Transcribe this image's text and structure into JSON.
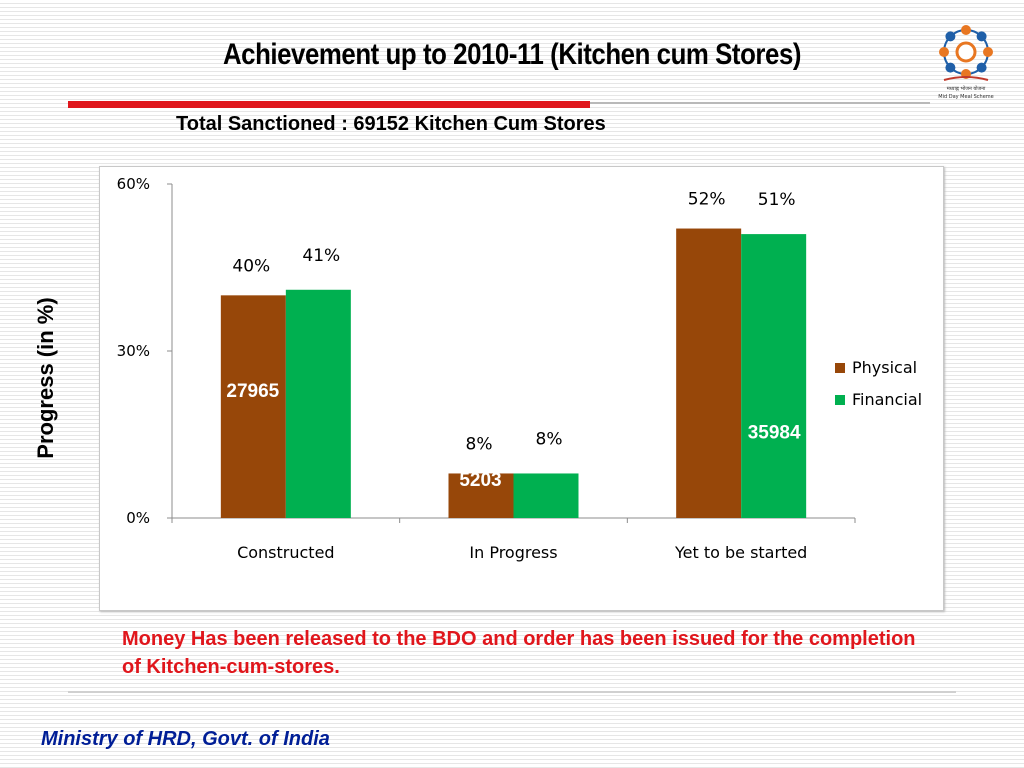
{
  "slide": {
    "title": "Achievement up to 2010-11 (Kitchen cum Stores)",
    "subtitle": "Total Sanctioned :  69152  Kitchen Cum Stores",
    "ylabel": "Progress (in %)",
    "note": "Money Has been released to the BDO and order has been issued for the completion of Kitchen-cum-stores.",
    "footer": "Ministry of HRD, Govt. of India",
    "logo_text": "मध्याह्न भोजन योजना",
    "logo_caption": "Mid Day Meal Scheme"
  },
  "colors": {
    "accent_red": "#e0161c",
    "footer_blue": "#001e96",
    "physical": "#974709",
    "financial": "#00b050"
  },
  "chart_data": {
    "type": "bar",
    "categories": [
      "Constructed",
      "In Progress",
      "Yet to be started"
    ],
    "series": [
      {
        "name": "Physical",
        "values": [
          40,
          8,
          52
        ],
        "labels": [
          "40%",
          "8%",
          "52%"
        ],
        "color": "#974709"
      },
      {
        "name": "Financial",
        "values": [
          41,
          8,
          51
        ],
        "labels": [
          "41%",
          "8%",
          "51%"
        ],
        "color": "#00b050"
      }
    ],
    "counts": [
      "27965",
      "5203",
      "35984"
    ],
    "ylim": [
      0,
      60
    ],
    "yticks": [
      0,
      30,
      60
    ],
    "ytick_labels": [
      "0%",
      "30%",
      "60%"
    ],
    "ylabel": "Progress (in %)",
    "legend": "right",
    "grid": false
  }
}
